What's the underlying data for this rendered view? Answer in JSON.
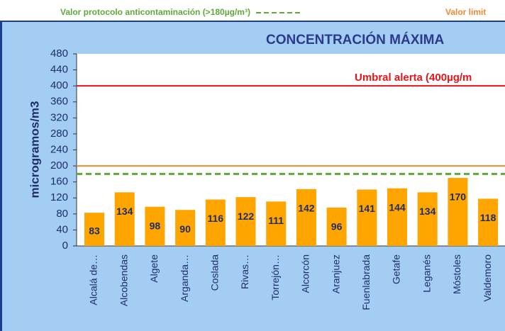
{
  "chart_data": {
    "type": "bar",
    "title": "CONCENTRACIÓN MÁXIMA",
    "y_label": "microgramos/m3",
    "categories": [
      "Alcalá de…",
      "Alcobendas",
      "Algete",
      "Arganda…",
      "Coslada",
      "Rivas…",
      "Torrejón…",
      "Alcorcón",
      "Aranjuez",
      "Fuenlabrada",
      "Getafe",
      "Leganés",
      "Móstoles",
      "Valdemoro"
    ],
    "values": [
      83,
      134,
      98,
      90,
      116,
      122,
      111,
      142,
      96,
      141,
      144,
      134,
      170,
      118
    ],
    "color": "#ffa500",
    "ylim": [
      0,
      480
    ],
    "yticks": [
      0,
      40,
      80,
      120,
      160,
      200,
      240,
      280,
      320,
      360,
      400,
      440,
      480
    ],
    "reference_lines": [
      {
        "value": 180,
        "color": "#5fa83a",
        "dashed": true,
        "legend": "Valor protocolo anticontaminación (>180µg/m³)"
      },
      {
        "value": 200,
        "color": "#f08a30",
        "dashed": false,
        "legend": "Valor limit"
      },
      {
        "value": 400,
        "color": "#e8141c",
        "dashed": false,
        "label": "Umbral alerta (400µg/m"
      }
    ]
  }
}
